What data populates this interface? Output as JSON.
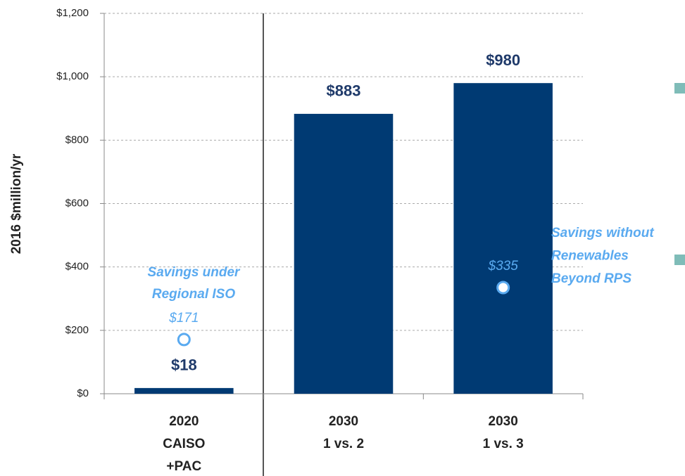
{
  "chart_data": {
    "type": "bar",
    "y_label": "2016 $million/yr",
    "categories": [
      [
        "2020",
        "CAISO",
        "+PAC"
      ],
      [
        "2030",
        "1 vs. 2"
      ],
      [
        "2030",
        "1 vs. 3"
      ]
    ],
    "values": [
      18,
      883,
      980
    ],
    "value_labels": [
      "$18",
      "$883",
      "$980"
    ],
    "color": "#003a73",
    "markers": {
      "values": [
        171,
        null,
        335
      ],
      "value_labels": [
        "$171",
        null,
        "$335"
      ],
      "color": "#5aaaf0"
    },
    "annotations": [
      {
        "lines": [
          "Savings under",
          "Regional ISO"
        ]
      },
      {
        "lines": [
          "Savings without",
          "Renewables",
          "Beyond RPS"
        ]
      }
    ],
    "ylim": [
      0,
      1200
    ],
    "yticks": [
      {
        "value": 0,
        "label": "$0"
      },
      {
        "value": 200,
        "label": "$200"
      },
      {
        "value": 400,
        "label": "$400"
      },
      {
        "value": 600,
        "label": "$600"
      },
      {
        "value": 800,
        "label": "$800"
      },
      {
        "value": 1000,
        "label": "$1,000"
      },
      {
        "value": 1200,
        "label": "$1,200"
      }
    ],
    "grid": true
  }
}
